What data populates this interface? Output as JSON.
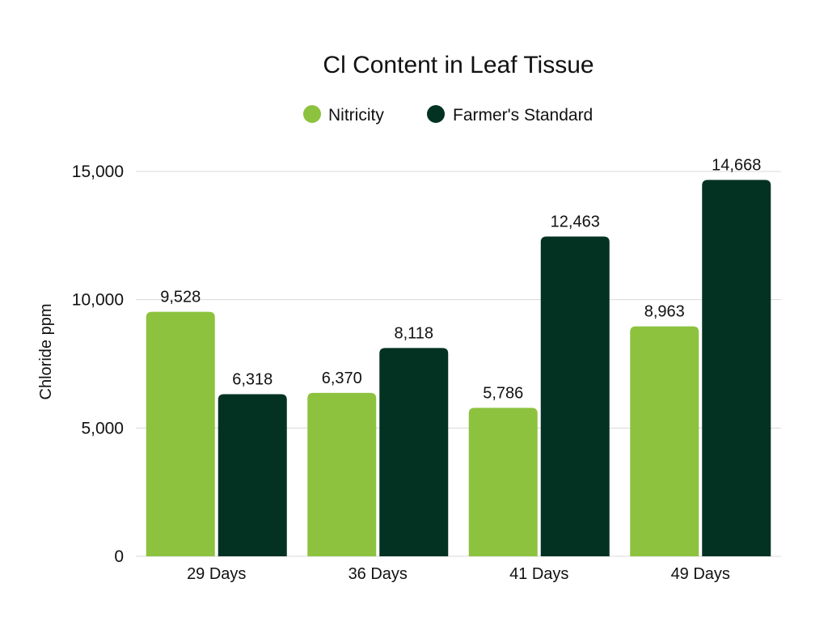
{
  "chart_data": {
    "type": "bar",
    "title": "Cl Content in Leaf Tissue",
    "xlabel": "",
    "ylabel": "Chloride ppm",
    "categories": [
      "29 Days",
      "36 Days",
      "41 Days",
      "49 Days"
    ],
    "series": [
      {
        "name": "Nitricity",
        "color": "#8DC23F",
        "values": [
          9528,
          6370,
          5786,
          8963
        ],
        "labels": [
          "9,528",
          "6,370",
          "5,786",
          "8,963"
        ]
      },
      {
        "name": "Farmer's Standard",
        "color": "#033222",
        "values": [
          6318,
          8118,
          12463,
          14668
        ],
        "labels": [
          "6,318",
          "8,118",
          "12,463",
          "14,668"
        ]
      }
    ],
    "ylim": [
      0,
      15000
    ],
    "yticks": [
      0,
      5000,
      10000,
      15000
    ],
    "ytick_labels": [
      "0",
      "5,000",
      "10,000",
      "15,000"
    ],
    "grid": true,
    "legend_position": "top-center",
    "gridline_color": "#D9D9D9"
  }
}
